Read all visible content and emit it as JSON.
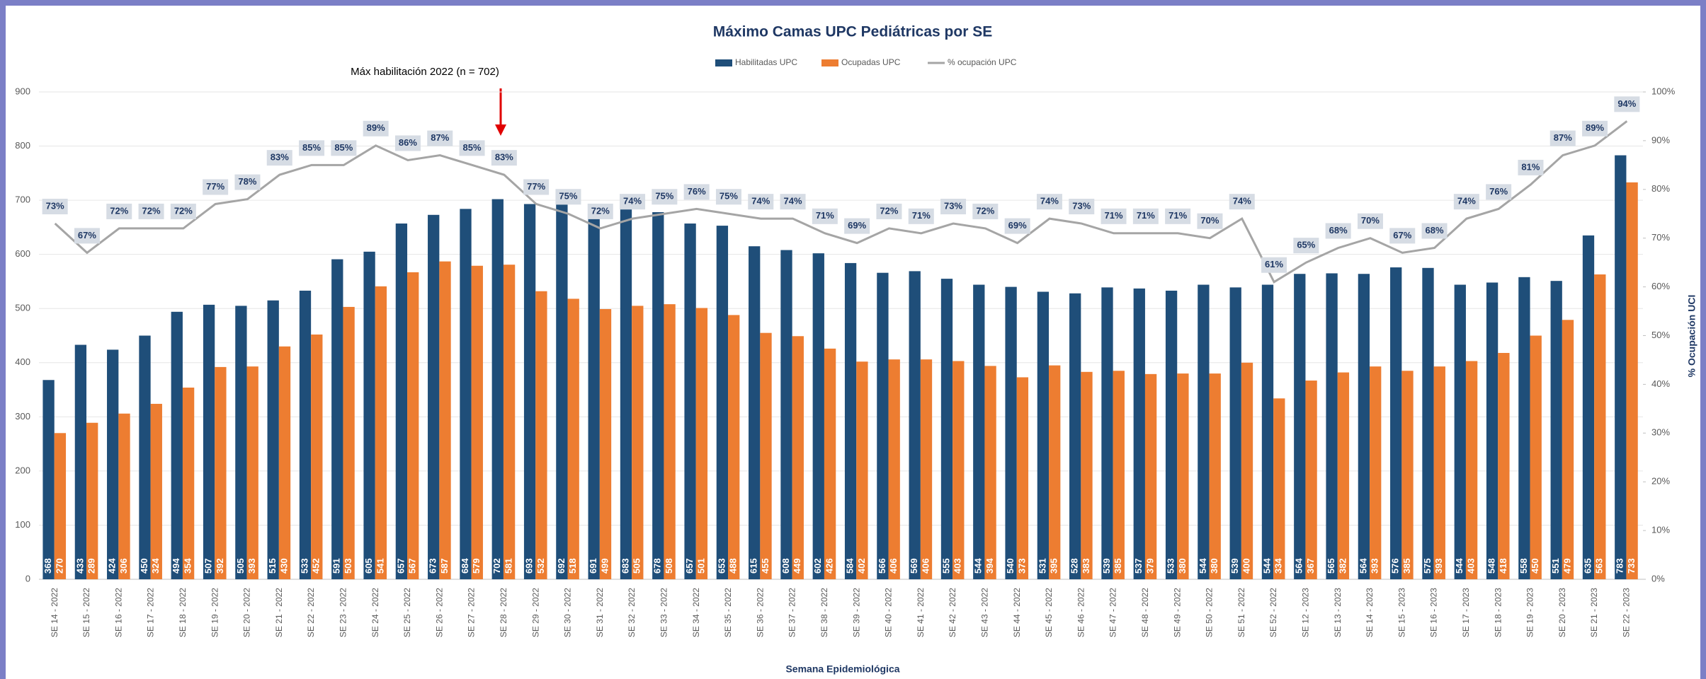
{
  "chart_data": {
    "type": "bar",
    "title": "Máximo Camas UPC Pediátricas por SE",
    "x_label": "Semana Epidemiológica",
    "y2_label": "% Ocupación UCI",
    "annotation": "Máx habilitación 2022 (n = 702)",
    "categories": [
      "SE 14 - 2022",
      "SE 15 - 2022",
      "SE 16 - 2022",
      "SE 17 - 2022",
      "SE 18 - 2022",
      "SE 19 - 2022",
      "SE 20 - 2022",
      "SE 21 - 2022",
      "SE 22 - 2022",
      "SE 23 - 2022",
      "SE 24 - 2022",
      "SE 25 - 2022",
      "SE 26 - 2022",
      "SE 27 - 2022",
      "SE 28 - 2022",
      "SE 29 - 2022",
      "SE 30 - 2022",
      "SE 31 - 2022",
      "SE 32 - 2022",
      "SE 33 - 2022",
      "SE 34 - 2022",
      "SE 35 - 2022",
      "SE 36 - 2022",
      "SE 37 - 2022",
      "SE 38 - 2022",
      "SE 39 - 2022",
      "SE 40 - 2022",
      "SE 41 - 2022",
      "SE 42 - 2022",
      "SE 43 - 2022",
      "SE 44 - 2022",
      "SE 45 - 2022",
      "SE 46 - 2022",
      "SE 47 - 2022",
      "SE 48 - 2022",
      "SE 49 - 2022",
      "SE 50 - 2022",
      "SE 51 - 2022",
      "SE 52 - 2022",
      "SE 12 - 2023",
      "SE 13 - 2023",
      "SE 14 - 2023",
      "SE 15 - 2023",
      "SE 16 - 2023",
      "SE 17 - 2023",
      "SE 18 - 2023",
      "SE 19 - 2023",
      "SE 20 - 2023",
      "SE 21 - 2023",
      "SE 22 - 2023"
    ],
    "series": [
      {
        "name": "Habilitadas UPC",
        "type": "bar",
        "color": "#1f4e79",
        "values": [
          368,
          433,
          424,
          450,
          494,
          507,
          505,
          515,
          533,
          591,
          605,
          657,
          673,
          684,
          702,
          693,
          692,
          691,
          683,
          678,
          657,
          653,
          615,
          608,
          602,
          584,
          566,
          569,
          555,
          544,
          540,
          531,
          528,
          539,
          537,
          533,
          544,
          539,
          544,
          564,
          565,
          564,
          576,
          575,
          544,
          548,
          558,
          551,
          635,
          783
        ]
      },
      {
        "name": "Ocupadas UPC",
        "type": "bar",
        "color": "#ed7d31",
        "values": [
          270,
          289,
          306,
          324,
          354,
          392,
          393,
          430,
          452,
          503,
          541,
          567,
          587,
          579,
          581,
          532,
          518,
          499,
          505,
          508,
          501,
          488,
          455,
          449,
          426,
          402,
          406,
          406,
          403,
          394,
          373,
          395,
          383,
          385,
          379,
          380,
          380,
          400,
          334,
          367,
          382,
          393,
          385,
          393,
          403,
          418,
          450,
          479,
          563,
          733
        ]
      },
      {
        "name": "% ocupación UPC",
        "type": "line",
        "axis": "y2",
        "color": "#a5a5a5",
        "values": [
          73,
          67,
          72,
          72,
          72,
          77,
          78,
          83,
          85,
          85,
          89,
          86,
          87,
          85,
          83,
          77,
          75,
          72,
          74,
          75,
          76,
          75,
          74,
          74,
          71,
          69,
          72,
          71,
          73,
          72,
          69,
          74,
          73,
          71,
          71,
          71,
          70,
          74,
          61,
          65,
          68,
          70,
          67,
          68,
          74,
          76,
          81,
          87,
          89,
          94
        ],
        "value_labels": [
          "73%",
          "67%",
          "72%",
          "72%",
          "72%",
          "77%",
          "78%",
          "83%",
          "85%",
          "85%",
          "89%",
          "86%",
          "87%",
          "85%",
          "83%",
          "77%",
          "75%",
          "72%",
          "74%",
          "75%",
          "76%",
          "75%",
          "74%",
          "74%",
          "71%",
          "69%",
          "72%",
          "71%",
          "73%",
          "72%",
          "69%",
          "74%",
          "73%",
          "71%",
          "71%",
          "71%",
          "70%",
          "74%",
          "61%",
          "65%",
          "68%",
          "70%",
          "67%",
          "68%",
          "74%",
          "76%",
          "81%",
          "87%",
          "89%",
          "94%"
        ]
      }
    ],
    "ylim": [
      0,
      900
    ],
    "yticks": [
      0,
      100,
      200,
      300,
      400,
      500,
      600,
      700,
      800,
      900
    ],
    "y2lim": [
      0,
      100
    ],
    "y2ticks": [
      {
        "value": 0,
        "label": "0%"
      },
      {
        "value": 10,
        "label": "10%"
      },
      {
        "value": 20,
        "label": "20%"
      },
      {
        "value": 30,
        "label": "30%"
      },
      {
        "value": 40,
        "label": "40%"
      },
      {
        "value": 50,
        "label": "50%"
      },
      {
        "value": 60,
        "label": "60%"
      },
      {
        "value": 70,
        "label": "70%"
      },
      {
        "value": 80,
        "label": "80%"
      },
      {
        "value": 90,
        "label": "90%"
      },
      {
        "value": 100,
        "label": "100%"
      }
    ],
    "grid": true,
    "legend": "top"
  }
}
